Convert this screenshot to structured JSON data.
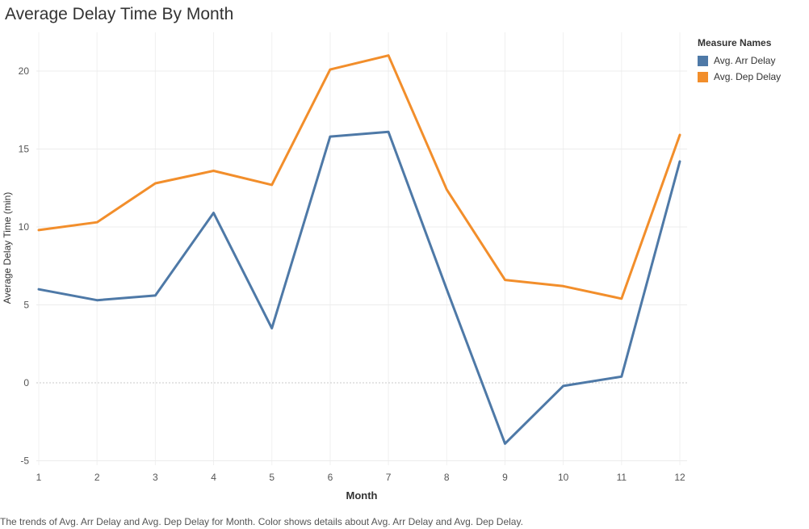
{
  "chart_data": {
    "type": "line",
    "title": "Average Delay Time By Month",
    "xlabel": "Month",
    "ylabel": "Average Delay Time (min)",
    "x": [
      1,
      2,
      3,
      4,
      5,
      6,
      7,
      8,
      9,
      10,
      11,
      12
    ],
    "xlim": [
      1,
      12
    ],
    "ylim": [
      -5.5,
      23
    ],
    "yticks": [
      -5,
      0,
      5,
      10,
      15,
      20
    ],
    "grid": true,
    "legend_title": "Measure Names",
    "legend_position": "top-right",
    "series": [
      {
        "name": "Avg. Arr Delay",
        "color": "#4e79a7",
        "values": [
          6.0,
          5.3,
          5.6,
          10.9,
          3.5,
          15.8,
          16.1,
          6.0,
          -3.9,
          -0.2,
          0.4,
          14.2
        ]
      },
      {
        "name": "Avg. Dep Delay",
        "color": "#f28e2b",
        "values": [
          9.8,
          10.3,
          12.8,
          13.6,
          12.7,
          20.1,
          21.0,
          12.4,
          6.6,
          6.2,
          5.4,
          15.9
        ]
      }
    ]
  },
  "caption": "The trends of Avg. Arr Delay and Avg. Dep Delay for Month.  Color shows details about Avg. Arr Delay and Avg. Dep Delay."
}
